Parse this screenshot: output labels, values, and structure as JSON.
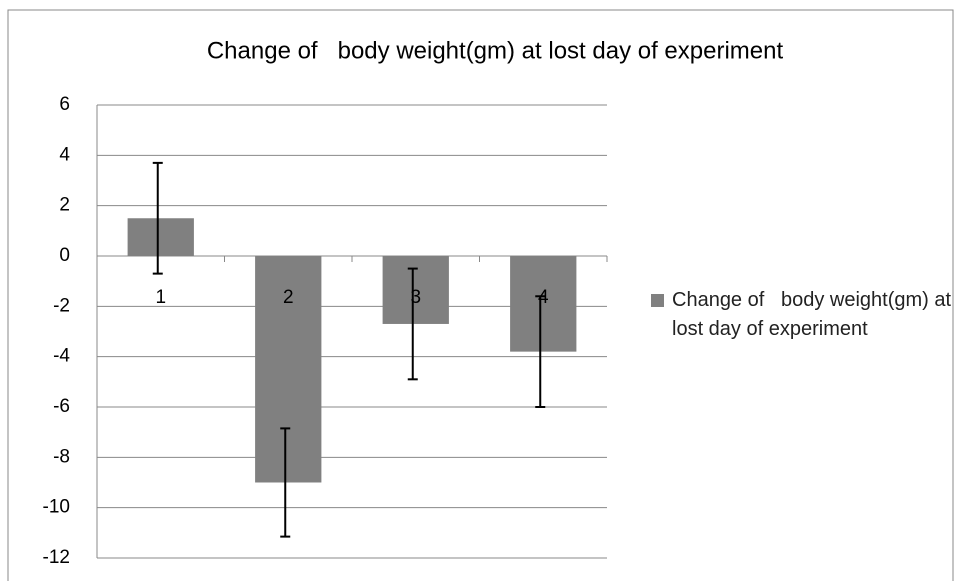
{
  "chart_data": {
    "type": "bar",
    "title": "Change of   body weight(gm) at lost day of experiment",
    "categories": [
      "1",
      "2",
      "3",
      "4"
    ],
    "series": [
      {
        "name": "Change of   body weight(gm) at lost day of experiment",
        "color": "#808080",
        "values": [
          1.5,
          -9,
          -2.7,
          -3.8
        ],
        "errors": [
          2.2,
          2.15,
          2.2,
          2.2
        ]
      }
    ],
    "ylim": [
      -12,
      6
    ],
    "yticks": [
      -12,
      -10,
      -8,
      -6,
      -4,
      -2,
      0,
      2,
      4,
      6
    ],
    "grid": true,
    "legend": "right"
  }
}
